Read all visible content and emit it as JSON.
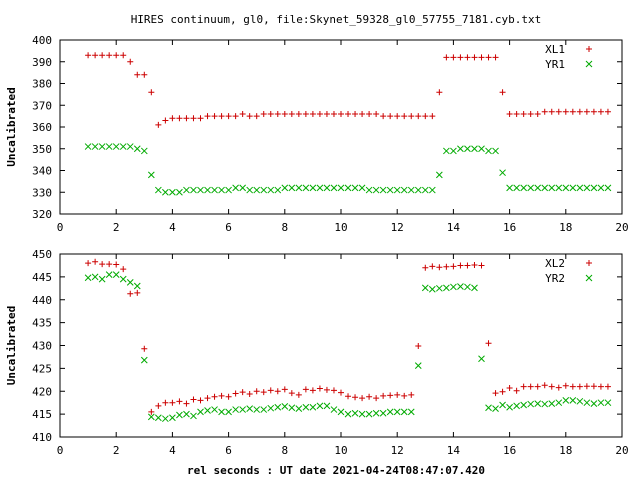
{
  "title": "HIRES continuum, gl0, file:Skynet_59328_gl0_57755_7181.cyb.txt",
  "xlabel": "rel seconds : UT date 2021-04-24T08:47:07.420",
  "colors": {
    "red": "#cc0000",
    "green": "#00aa00"
  },
  "chart_data": [
    {
      "type": "scatter",
      "ylabel": "Uncalibrated",
      "xlim": [
        0,
        20
      ],
      "ylim": [
        320,
        400
      ],
      "xticks": [
        0,
        2,
        4,
        6,
        8,
        10,
        12,
        14,
        16,
        18,
        20
      ],
      "yticks": [
        320,
        330,
        340,
        350,
        360,
        370,
        380,
        390,
        400
      ],
      "legend_position": "top-right",
      "series": [
        {
          "name": "XL1",
          "marker": "plus",
          "color": "#cc0000",
          "x": [
            1.0,
            1.25,
            1.5,
            1.75,
            2.0,
            2.25,
            2.5,
            2.75,
            3.0,
            3.25,
            3.5,
            3.75,
            4.0,
            4.25,
            4.5,
            4.75,
            5.0,
            5.25,
            5.5,
            5.75,
            6.0,
            6.25,
            6.5,
            6.75,
            7.0,
            7.25,
            7.5,
            7.75,
            8.0,
            8.25,
            8.5,
            8.75,
            9.0,
            9.25,
            9.5,
            9.75,
            10.0,
            10.25,
            10.5,
            10.75,
            11.0,
            11.25,
            11.5,
            11.75,
            12.0,
            12.25,
            12.5,
            12.75,
            13.0,
            13.25,
            13.5,
            13.75,
            14.0,
            14.25,
            14.5,
            14.75,
            15.0,
            15.25,
            15.5,
            15.75,
            16.0,
            16.25,
            16.5,
            16.75,
            17.0,
            17.25,
            17.5,
            17.75,
            18.0,
            18.25,
            18.5,
            18.75,
            19.0,
            19.25,
            19.5
          ],
          "y": [
            393,
            393,
            393,
            393,
            393,
            393,
            390,
            384,
            384,
            376,
            361,
            363,
            364,
            364,
            364,
            364,
            364,
            365,
            365,
            365,
            365,
            365,
            366,
            365,
            365,
            366,
            366,
            366,
            366,
            366,
            366,
            366,
            366,
            366,
            366,
            366,
            366,
            366,
            366,
            366,
            366,
            366,
            365,
            365,
            365,
            365,
            365,
            365,
            365,
            365,
            376,
            392,
            392,
            392,
            392,
            392,
            392,
            392,
            392,
            376,
            366,
            366,
            366,
            366,
            366,
            367,
            367,
            367,
            367,
            367,
            367,
            367,
            367,
            367,
            367
          ]
        },
        {
          "name": "YR1",
          "marker": "cross",
          "color": "#00aa00",
          "x": [
            1.0,
            1.25,
            1.5,
            1.75,
            2.0,
            2.25,
            2.5,
            2.75,
            3.0,
            3.25,
            3.5,
            3.75,
            4.0,
            4.25,
            4.5,
            4.75,
            5.0,
            5.25,
            5.5,
            5.75,
            6.0,
            6.25,
            6.5,
            6.75,
            7.0,
            7.25,
            7.5,
            7.75,
            8.0,
            8.25,
            8.5,
            8.75,
            9.0,
            9.25,
            9.5,
            9.75,
            10.0,
            10.25,
            10.5,
            10.75,
            11.0,
            11.25,
            11.5,
            11.75,
            12.0,
            12.25,
            12.5,
            12.75,
            13.0,
            13.25,
            13.5,
            13.75,
            14.0,
            14.25,
            14.5,
            14.75,
            15.0,
            15.25,
            15.5,
            15.75,
            16.0,
            16.25,
            16.5,
            16.75,
            17.0,
            17.25,
            17.5,
            17.75,
            18.0,
            18.25,
            18.5,
            18.75,
            19.0,
            19.25,
            19.5
          ],
          "y": [
            351,
            351,
            351,
            351,
            351,
            351,
            351,
            350,
            349,
            338,
            331,
            330,
            330,
            330,
            331,
            331,
            331,
            331,
            331,
            331,
            331,
            332,
            332,
            331,
            331,
            331,
            331,
            331,
            332,
            332,
            332,
            332,
            332,
            332,
            332,
            332,
            332,
            332,
            332,
            332,
            331,
            331,
            331,
            331,
            331,
            331,
            331,
            331,
            331,
            331,
            338,
            349,
            349,
            350,
            350,
            350,
            350,
            349,
            349,
            339,
            332,
            332,
            332,
            332,
            332,
            332,
            332,
            332,
            332,
            332,
            332,
            332,
            332,
            332,
            332
          ]
        }
      ]
    },
    {
      "type": "scatter",
      "ylabel": "Uncalibrated",
      "xlim": [
        0,
        20
      ],
      "ylim": [
        410,
        450
      ],
      "xticks": [
        0,
        2,
        4,
        6,
        8,
        10,
        12,
        14,
        16,
        18,
        20
      ],
      "yticks": [
        410,
        415,
        420,
        425,
        430,
        435,
        440,
        445,
        450
      ],
      "legend_position": "top-right",
      "series": [
        {
          "name": "XL2",
          "marker": "plus",
          "color": "#cc0000",
          "x": [
            1.0,
            1.25,
            1.5,
            1.75,
            2.0,
            2.25,
            2.5,
            2.75,
            3.0,
            3.25,
            3.5,
            3.75,
            4.0,
            4.25,
            4.5,
            4.75,
            5.0,
            5.25,
            5.5,
            5.75,
            6.0,
            6.25,
            6.5,
            6.75,
            7.0,
            7.25,
            7.5,
            7.75,
            8.0,
            8.25,
            8.5,
            8.75,
            9.0,
            9.25,
            9.5,
            9.75,
            10.0,
            10.25,
            10.5,
            10.75,
            11.0,
            11.25,
            11.5,
            11.75,
            12.0,
            12.25,
            12.5,
            12.75,
            13.0,
            13.25,
            13.5,
            13.75,
            14.0,
            14.25,
            14.5,
            14.75,
            15.0,
            15.25,
            15.5,
            15.75,
            16.0,
            16.25,
            16.5,
            16.75,
            17.0,
            17.25,
            17.5,
            17.75,
            18.0,
            18.25,
            18.5,
            18.75,
            19.0,
            19.25,
            19.5
          ],
          "y": [
            448,
            448.3,
            447.8,
            447.8,
            447.7,
            446.7,
            441.3,
            441.5,
            429.3,
            415.5,
            416.8,
            417.5,
            417.5,
            417.8,
            417.3,
            418.2,
            418.0,
            418.5,
            418.8,
            419.0,
            418.8,
            419.5,
            419.8,
            419.4,
            420.0,
            419.8,
            420.2,
            420.0,
            420.4,
            419.6,
            419.2,
            420.4,
            420.2,
            420.6,
            420.3,
            420.2,
            419.7,
            418.9,
            418.7,
            418.5,
            418.8,
            418.5,
            419.0,
            419.1,
            419.2,
            419.0,
            419.2,
            429.9,
            447.0,
            447.3,
            447.1,
            447.2,
            447.3,
            447.5,
            447.5,
            447.6,
            447.5,
            430.5,
            419.6,
            419.9,
            420.7,
            420.1,
            421.0,
            421.0,
            421.0,
            421.3,
            421.0,
            420.8,
            421.2,
            421.0,
            421.0,
            421.1,
            421.1,
            421.0,
            421.0
          ]
        },
        {
          "name": "YR2",
          "marker": "cross",
          "color": "#00aa00",
          "x": [
            1.0,
            1.25,
            1.5,
            1.75,
            2.0,
            2.25,
            2.5,
            2.75,
            3.0,
            3.25,
            3.5,
            3.75,
            4.0,
            4.25,
            4.5,
            4.75,
            5.0,
            5.25,
            5.5,
            5.75,
            6.0,
            6.25,
            6.5,
            6.75,
            7.0,
            7.25,
            7.5,
            7.75,
            8.0,
            8.25,
            8.5,
            8.75,
            9.0,
            9.25,
            9.5,
            9.75,
            10.0,
            10.25,
            10.5,
            10.75,
            11.0,
            11.25,
            11.5,
            11.75,
            12.0,
            12.25,
            12.5,
            12.75,
            13.0,
            13.25,
            13.5,
            13.75,
            14.0,
            14.25,
            14.5,
            14.75,
            15.0,
            15.25,
            15.5,
            15.75,
            16.0,
            16.25,
            16.5,
            16.75,
            17.0,
            17.25,
            17.5,
            17.75,
            18.0,
            18.25,
            18.5,
            18.75,
            19.0,
            19.25,
            19.5
          ],
          "y": [
            444.8,
            445.0,
            444.5,
            445.5,
            445.5,
            444.5,
            443.8,
            443.0,
            426.8,
            414.4,
            414.2,
            414.0,
            414.2,
            414.8,
            415.0,
            414.6,
            415.5,
            415.8,
            416.0,
            415.5,
            415.5,
            416.0,
            416.0,
            416.2,
            416.0,
            416.0,
            416.3,
            416.5,
            416.7,
            416.4,
            416.2,
            416.5,
            416.5,
            416.8,
            416.8,
            416.0,
            415.5,
            415.0,
            415.2,
            415.0,
            415.0,
            415.2,
            415.2,
            415.5,
            415.5,
            415.5,
            415.5,
            425.6,
            442.6,
            442.3,
            442.5,
            442.6,
            442.8,
            442.9,
            442.8,
            442.6,
            427.1,
            416.4,
            416.2,
            417.0,
            416.5,
            416.8,
            417.0,
            417.2,
            417.3,
            417.2,
            417.3,
            417.5,
            418.0,
            418.0,
            417.8,
            417.5,
            417.3,
            417.5,
            417.5
          ]
        }
      ]
    }
  ]
}
